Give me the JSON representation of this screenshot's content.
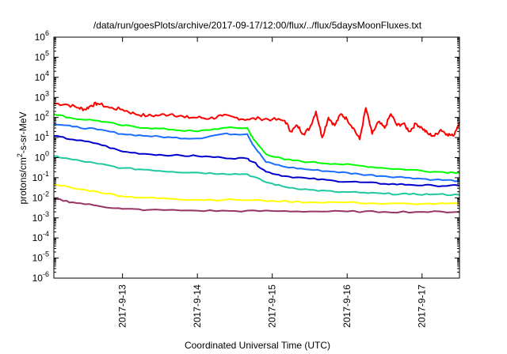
{
  "chart_data": {
    "type": "line",
    "title": "/data/run/goesPlots/archive/2017-09-17/12:00/flux/../flux/5daysMoonFluxes.txt",
    "xlabel": "Coordinated Universal Time (UTC)",
    "ylabel": {
      "prefix": "protons/cm",
      "sup": "2",
      "suffix": "-s-sr-MeV"
    },
    "x_range": [
      "2017-09-12T02:00",
      "2017-09-17T12:00"
    ],
    "x_ticks": [
      {
        "label": "2017-9-13",
        "date": "2017-09-13T00:00"
      },
      {
        "label": "2017-9-14",
        "date": "2017-09-14T00:00"
      },
      {
        "label": "2017-9-15",
        "date": "2017-09-15T00:00"
      },
      {
        "label": "2017-9-16",
        "date": "2017-09-16T00:00"
      },
      {
        "label": "2017-9-17",
        "date": "2017-09-17T00:00"
      }
    ],
    "y_scale": "log",
    "ylim": [
      1e-06,
      1000000.0
    ],
    "y_ticks": [
      {
        "base": "10",
        "exp": "-6",
        "value": 1e-06
      },
      {
        "base": "10",
        "exp": "-5",
        "value": 1e-05
      },
      {
        "base": "10",
        "exp": "-4",
        "value": 0.0001
      },
      {
        "base": "10",
        "exp": "-3",
        "value": 0.001
      },
      {
        "base": "10",
        "exp": "-2",
        "value": 0.01
      },
      {
        "base": "10",
        "exp": "-1",
        "value": 0.1
      },
      {
        "base": "10",
        "exp": "0",
        "value": 1
      },
      {
        "base": "10",
        "exp": "1",
        "value": 10.0
      },
      {
        "base": "10",
        "exp": "2",
        "value": 100.0
      },
      {
        "base": "10",
        "exp": "3",
        "value": 1000.0
      },
      {
        "base": "10",
        "exp": "4",
        "value": 10000.0
      },
      {
        "base": "10",
        "exp": "5",
        "value": 100000.0
      },
      {
        "base": "10",
        "exp": "6",
        "value": 1000000.0
      }
    ],
    "grid": false,
    "series": [
      {
        "color": "#ff0000",
        "x": [
          "2017-09-12T02:00",
          "2017-09-12T06:00",
          "2017-09-12T10:00",
          "2017-09-12T12:00",
          "2017-09-12T14:00",
          "2017-09-12T16:00",
          "2017-09-12T20:00",
          "2017-09-13T00:00",
          "2017-09-13T04:00",
          "2017-09-13T08:00",
          "2017-09-13T12:00",
          "2017-09-13T16:00",
          "2017-09-13T20:00",
          "2017-09-14T00:00",
          "2017-09-14T04:00",
          "2017-09-14T08:00",
          "2017-09-14T12:00",
          "2017-09-14T16:00",
          "2017-09-14T20:00",
          "2017-09-15T00:00",
          "2017-09-15T04:00",
          "2017-09-15T06:00",
          "2017-09-15T08:00",
          "2017-09-15T10:00",
          "2017-09-15T12:00",
          "2017-09-15T14:00",
          "2017-09-15T16:00",
          "2017-09-15T18:00",
          "2017-09-15T20:00",
          "2017-09-15T22:00",
          "2017-09-16T00:00",
          "2017-09-16T02:00",
          "2017-09-16T04:00",
          "2017-09-16T06:00",
          "2017-09-16T08:00",
          "2017-09-16T10:00",
          "2017-09-16T12:00",
          "2017-09-16T14:00",
          "2017-09-16T16:00",
          "2017-09-16T18:00",
          "2017-09-16T20:00",
          "2017-09-16T22:00",
          "2017-09-17T00:00",
          "2017-09-17T02:00",
          "2017-09-17T04:00",
          "2017-09-17T06:00",
          "2017-09-17T08:00",
          "2017-09-17T10:00",
          "2017-09-17T12:00"
        ],
        "values": [
          500,
          450,
          300,
          250,
          400,
          500,
          300,
          250,
          150,
          120,
          130,
          150,
          100,
          100,
          90,
          120,
          100,
          80,
          90,
          80,
          70,
          20,
          40,
          15,
          30,
          200,
          10,
          100,
          40,
          150,
          80,
          30,
          8,
          300,
          15,
          60,
          30,
          150,
          40,
          50,
          20,
          50,
          30,
          15,
          12,
          25,
          15,
          12,
          60
        ]
      },
      {
        "color": "#00ff00",
        "x": [
          "2017-09-12T02:00",
          "2017-09-12T08:00",
          "2017-09-12T16:00",
          "2017-09-13T00:00",
          "2017-09-13T08:00",
          "2017-09-13T16:00",
          "2017-09-14T00:00",
          "2017-09-14T08:00",
          "2017-09-14T16:00",
          "2017-09-14T18:00",
          "2017-09-14T22:00",
          "2017-09-15T04:00",
          "2017-09-15T12:00",
          "2017-09-15T20:00",
          "2017-09-16T04:00",
          "2017-09-16T12:00",
          "2017-09-16T20:00",
          "2017-09-17T04:00",
          "2017-09-17T12:00"
        ],
        "values": [
          150,
          90,
          70,
          40,
          30,
          25,
          20,
          30,
          30,
          8,
          1.5,
          0.8,
          0.6,
          0.5,
          0.4,
          0.3,
          0.25,
          0.2,
          0.18
        ]
      },
      {
        "color": "#1a6eff",
        "x": [
          "2017-09-12T02:00",
          "2017-09-12T08:00",
          "2017-09-12T16:00",
          "2017-09-13T00:00",
          "2017-09-13T08:00",
          "2017-09-13T16:00",
          "2017-09-14T00:00",
          "2017-09-14T08:00",
          "2017-09-14T16:00",
          "2017-09-14T18:00",
          "2017-09-14T22:00",
          "2017-09-15T04:00",
          "2017-09-15T12:00",
          "2017-09-15T20:00",
          "2017-09-16T04:00",
          "2017-09-16T12:00",
          "2017-09-16T20:00",
          "2017-09-17T04:00",
          "2017-09-17T12:00"
        ],
        "values": [
          50,
          35,
          25,
          15,
          12,
          10,
          9,
          15,
          15,
          4,
          0.6,
          0.35,
          0.25,
          0.2,
          0.15,
          0.12,
          0.1,
          0.08,
          0.07
        ]
      },
      {
        "color": "#0000cc",
        "x": [
          "2017-09-12T02:00",
          "2017-09-12T08:00",
          "2017-09-12T16:00",
          "2017-09-13T00:00",
          "2017-09-13T08:00",
          "2017-09-13T16:00",
          "2017-09-14T00:00",
          "2017-09-14T08:00",
          "2017-09-14T16:00",
          "2017-09-14T18:00",
          "2017-09-14T22:00",
          "2017-09-15T04:00",
          "2017-09-15T12:00",
          "2017-09-15T20:00",
          "2017-09-16T04:00",
          "2017-09-16T12:00",
          "2017-09-16T20:00",
          "2017-09-17T04:00",
          "2017-09-17T12:00"
        ],
        "values": [
          12,
          8,
          5,
          2,
          1.5,
          1.3,
          1.2,
          1.0,
          0.9,
          0.6,
          0.2,
          0.12,
          0.09,
          0.07,
          0.06,
          0.05,
          0.045,
          0.04,
          0.04
        ]
      },
      {
        "color": "#1ec8a0",
        "x": [
          "2017-09-12T02:00",
          "2017-09-12T08:00",
          "2017-09-12T16:00",
          "2017-09-13T00:00",
          "2017-09-13T08:00",
          "2017-09-13T16:00",
          "2017-09-14T00:00",
          "2017-09-14T08:00",
          "2017-09-14T16:00",
          "2017-09-14T22:00",
          "2017-09-15T04:00",
          "2017-09-15T12:00",
          "2017-09-15T20:00",
          "2017-09-16T04:00",
          "2017-09-16T12:00",
          "2017-09-16T20:00",
          "2017-09-17T04:00",
          "2017-09-17T12:00"
        ],
        "values": [
          1.2,
          0.8,
          0.5,
          0.3,
          0.25,
          0.2,
          0.18,
          0.16,
          0.15,
          0.06,
          0.035,
          0.025,
          0.02,
          0.018,
          0.016,
          0.015,
          0.015,
          0.014
        ]
      },
      {
        "color": "#ffff00",
        "x": [
          "2017-09-12T02:00",
          "2017-09-12T08:00",
          "2017-09-12T16:00",
          "2017-09-13T00:00",
          "2017-09-13T08:00",
          "2017-09-13T16:00",
          "2017-09-14T00:00",
          "2017-09-14T12:00",
          "2017-09-15T00:00",
          "2017-09-15T12:00",
          "2017-09-16T00:00",
          "2017-09-16T12:00",
          "2017-09-17T00:00",
          "2017-09-17T12:00"
        ],
        "values": [
          0.05,
          0.03,
          0.02,
          0.012,
          0.01,
          0.009,
          0.008,
          0.008,
          0.007,
          0.006,
          0.006,
          0.005,
          0.005,
          0.005
        ]
      },
      {
        "color": "#993366",
        "x": [
          "2017-09-12T02:00",
          "2017-09-12T08:00",
          "2017-09-12T16:00",
          "2017-09-13T00:00",
          "2017-09-13T08:00",
          "2017-09-14T00:00",
          "2017-09-14T12:00",
          "2017-09-15T00:00",
          "2017-09-15T12:00",
          "2017-09-16T00:00",
          "2017-09-16T12:00",
          "2017-09-17T00:00",
          "2017-09-17T12:00"
        ],
        "values": [
          0.009,
          0.006,
          0.004,
          0.0028,
          0.0025,
          0.0023,
          0.0022,
          0.0022,
          0.0021,
          0.0021,
          0.002,
          0.002,
          0.002
        ]
      }
    ]
  }
}
